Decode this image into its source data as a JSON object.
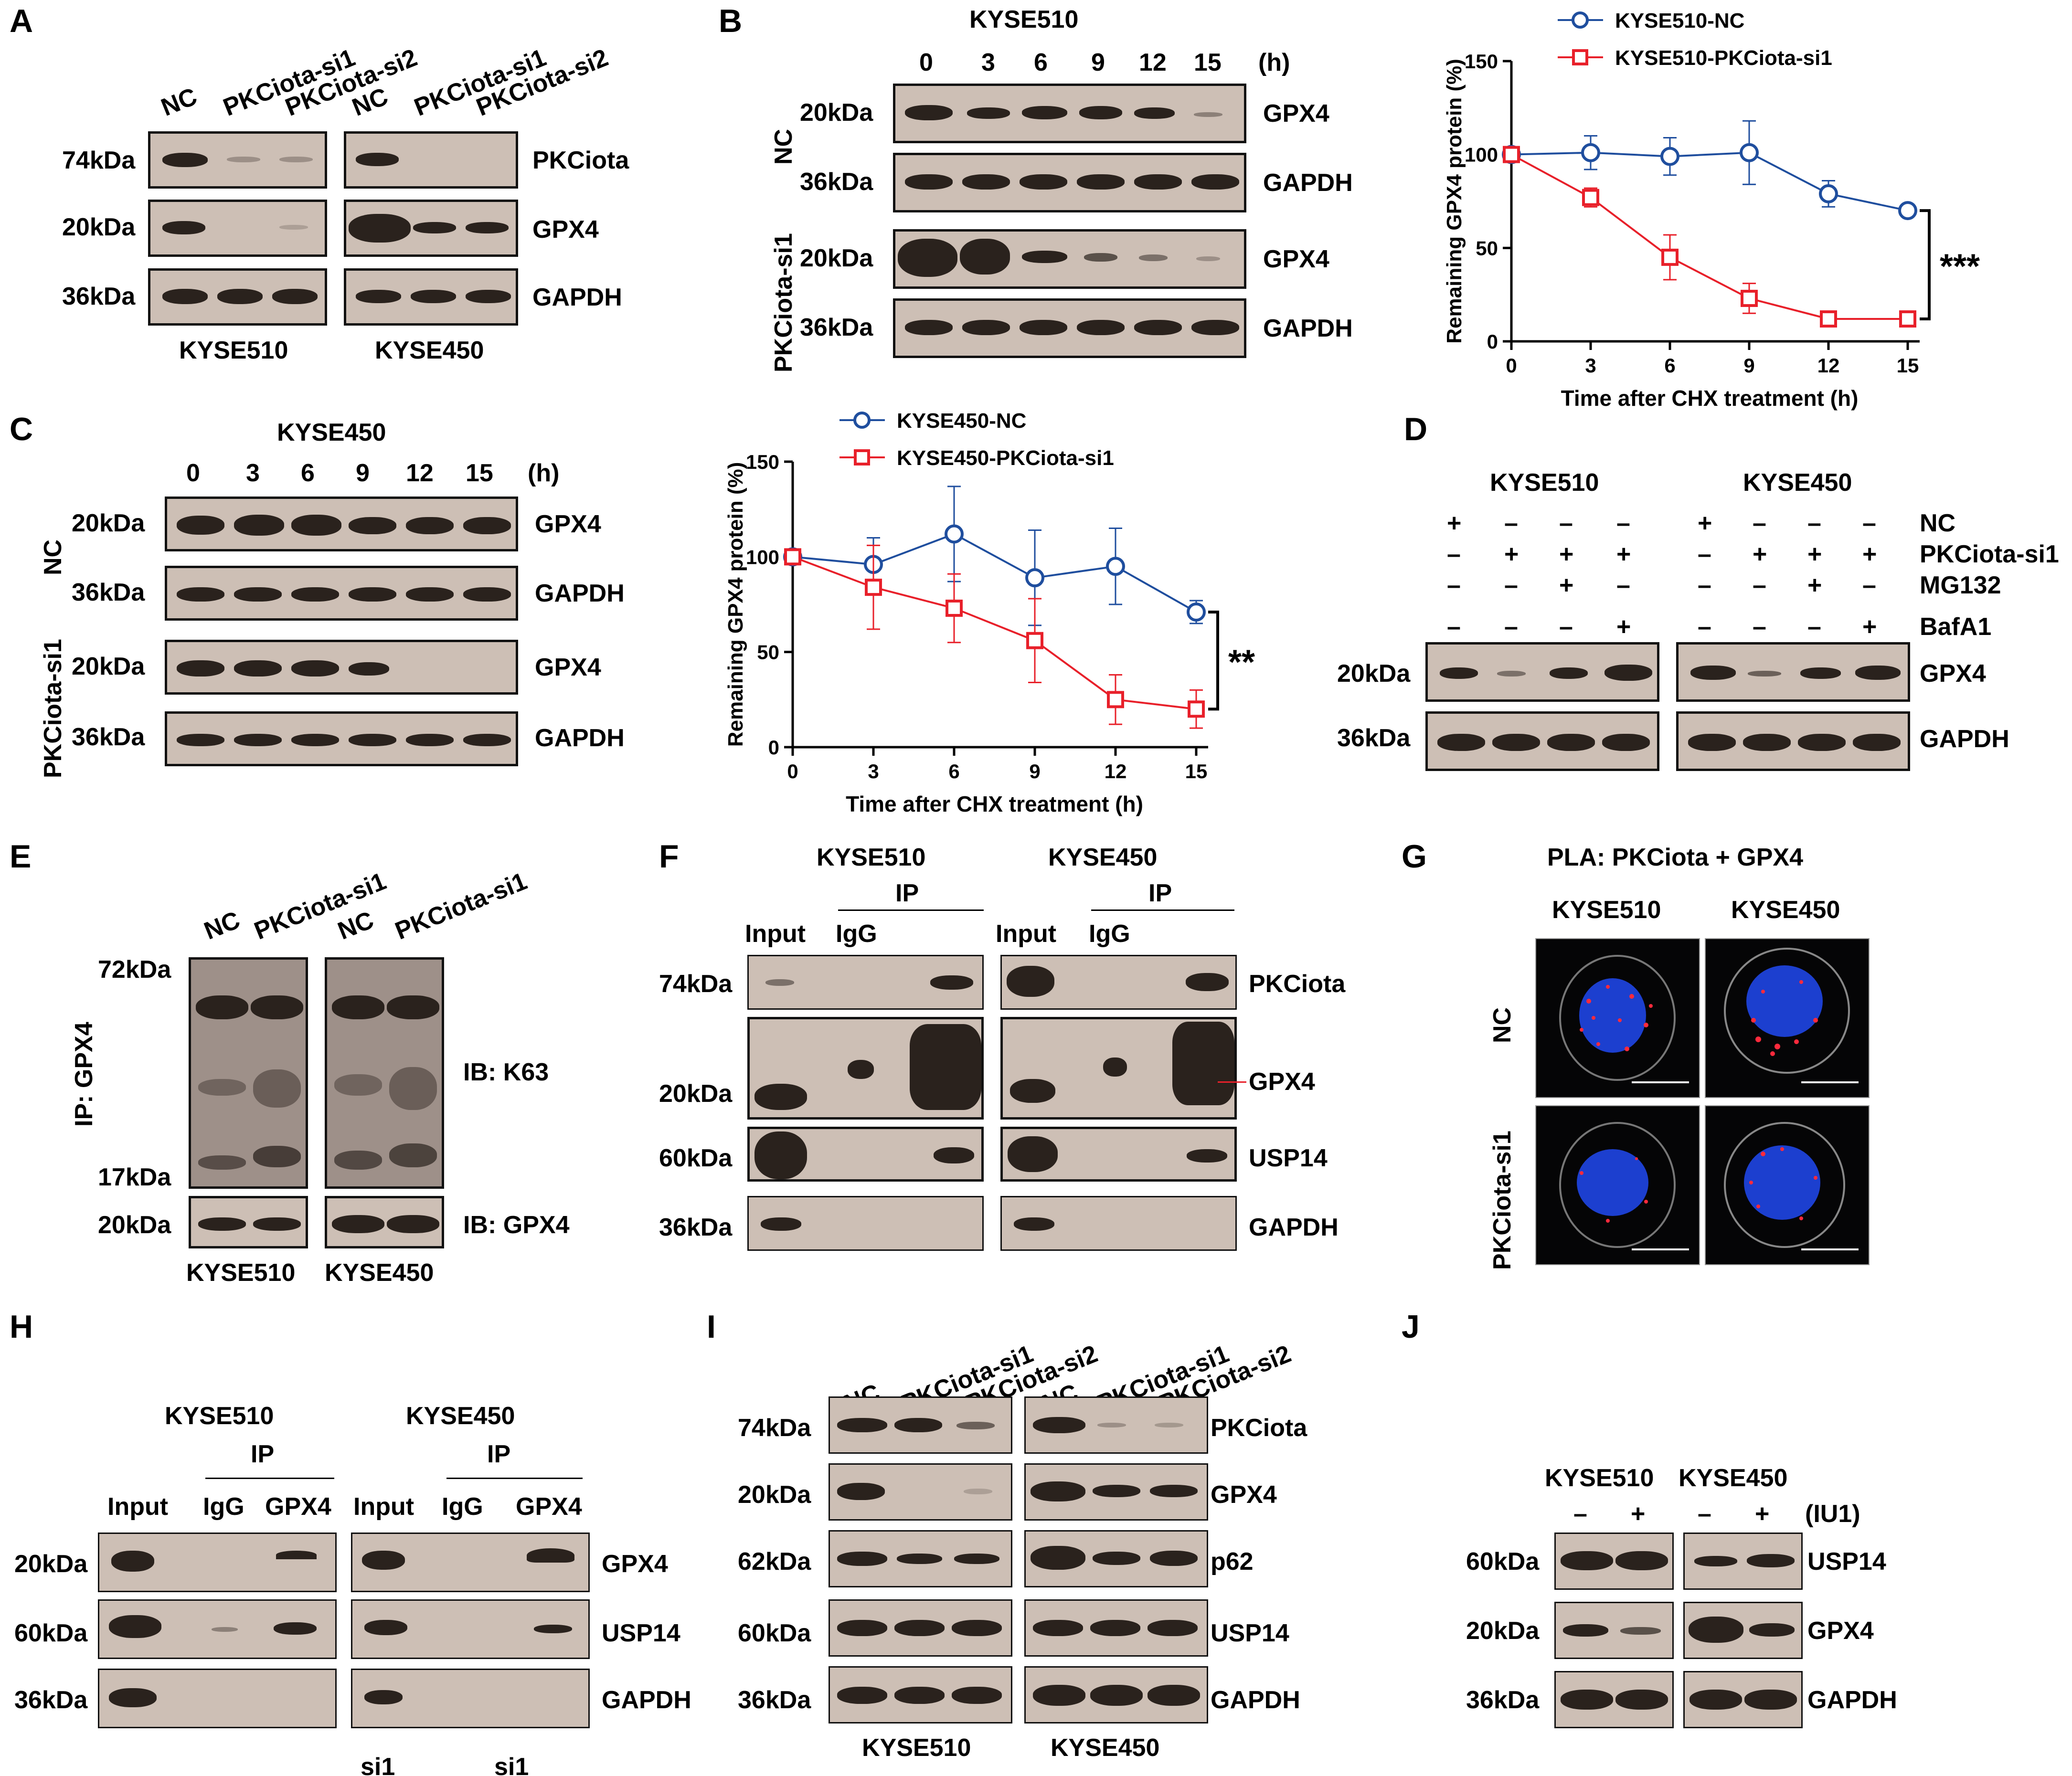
{
  "panels": {
    "A": "A",
    "B": "B",
    "C": "C",
    "D": "D",
    "E": "E",
    "F": "F",
    "G": "G",
    "H": "H",
    "I": "I",
    "J": "J"
  },
  "mw": {
    "k74": "74kDa",
    "k20": "20kDa",
    "k36": "36kDa",
    "k72": "72kDa",
    "k17": "17kDa",
    "k60": "60kDa",
    "k62": "62kDa"
  },
  "prot": {
    "pkc": "PKCiota",
    "gpx4": "GPX4",
    "gapdh": "GAPDH",
    "usp14": "USP14",
    "p62": "p62"
  },
  "lanes": {
    "nc": "NC",
    "si1": "PKCiota-si1",
    "si2": "PKCiota-si2",
    "input": "Input",
    "igg": "IgG",
    "gpx4": "GPX4",
    "ip": "IP"
  },
  "cells": {
    "k510": "KYSE510",
    "k450": "KYSE450"
  },
  "times": [
    "0",
    "3",
    "6",
    "9",
    "12",
    "15"
  ],
  "hours": "(h)",
  "panelD": {
    "rows": [
      "NC",
      "PKCiota-si1",
      "MG132",
      "BafA1"
    ],
    "plus": "+",
    "minus": "–",
    "signs": [
      [
        "+",
        "–",
        "–",
        "–",
        "+",
        "–",
        "–",
        "–"
      ],
      [
        "–",
        "+",
        "+",
        "+",
        "–",
        "+",
        "+",
        "+"
      ],
      [
        "–",
        "–",
        "+",
        "–",
        "–",
        "–",
        "+",
        "–"
      ],
      [
        "–",
        "–",
        "–",
        "+",
        "–",
        "–",
        "–",
        "+"
      ]
    ]
  },
  "panelE": {
    "ip": "IP: GPX4",
    "ib1": "IB: K63",
    "ib2": "IB: GPX4"
  },
  "panelG": {
    "title": "PLA: PKCiota + GPX4"
  },
  "panelJ": {
    "iu1": "(IU1)",
    "minus": "–",
    "plus": "+"
  },
  "bottom_cut": {
    "a": "si1",
    "b": "si1"
  },
  "chart_data": [
    {
      "type": "line",
      "title": "",
      "xlabel": "Time after CHX treatment (h)",
      "ylabel": "Remaining GPX4 protein (%)",
      "x": [
        0,
        3,
        6,
        9,
        12,
        15
      ],
      "xticks": [
        "0",
        "3",
        "6",
        "9",
        "12",
        "15"
      ],
      "yticks": [
        "0",
        "50",
        "100",
        "150"
      ],
      "ylim": [
        0,
        150
      ],
      "significance": "***",
      "series": [
        {
          "name": "KYSE510-NC",
          "color": "#1f4e9e",
          "values": [
            100,
            101,
            99,
            101,
            79,
            70
          ],
          "errors": [
            0,
            9,
            10,
            17,
            7,
            3
          ]
        },
        {
          "name": "KYSE510-PKCiota-si1",
          "color": "#e8202a",
          "values": [
            100,
            77,
            45,
            23,
            12,
            12
          ],
          "errors": [
            0,
            5,
            12,
            8,
            2,
            2
          ]
        }
      ]
    },
    {
      "type": "line",
      "title": "",
      "xlabel": "Time after CHX treatment (h)",
      "ylabel": "Remaining GPX4 protein (%)",
      "x": [
        0,
        3,
        6,
        9,
        12,
        15
      ],
      "xticks": [
        "0",
        "3",
        "6",
        "9",
        "12",
        "15"
      ],
      "yticks": [
        "0",
        "50",
        "100",
        "150"
      ],
      "ylim": [
        0,
        150
      ],
      "significance": "**",
      "series": [
        {
          "name": "KYSE450-NC",
          "color": "#1f4e9e",
          "values": [
            100,
            96,
            112,
            89,
            95,
            71
          ],
          "errors": [
            0,
            14,
            25,
            25,
            20,
            6
          ]
        },
        {
          "name": "KYSE450-PKCiota-si1",
          "color": "#e8202a",
          "values": [
            100,
            84,
            73,
            56,
            25,
            20
          ],
          "errors": [
            0,
            22,
            18,
            22,
            13,
            10
          ]
        }
      ]
    }
  ]
}
